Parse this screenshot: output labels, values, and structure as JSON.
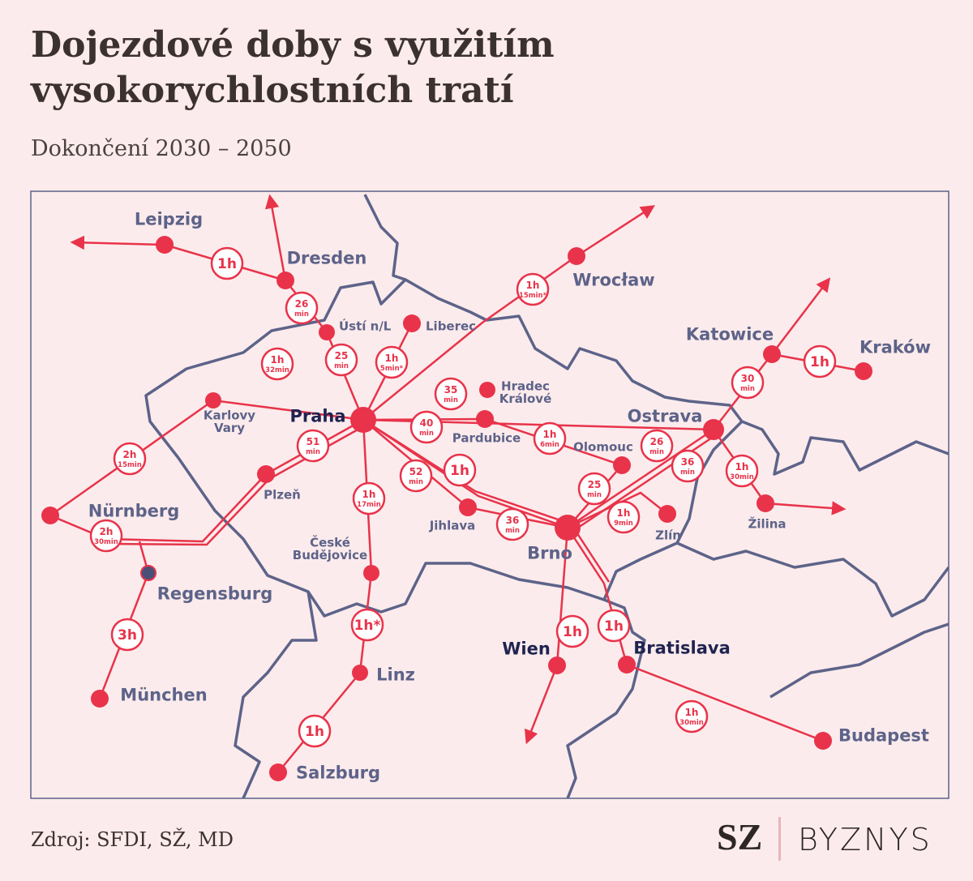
{
  "header": {
    "title": [
      "Dojezdové doby s využitím",
      "vysokorychlostních tratí"
    ],
    "subtitle": "Dokončení 2030 – 2050"
  },
  "cities": [
    {
      "lines": [
        "Leipzig"
      ]
    },
    {
      "lines": [
        "Dresden"
      ]
    },
    {
      "lines": [
        "Ústí n/L"
      ]
    },
    {
      "lines": [
        "Liberec"
      ]
    },
    {
      "lines": [
        "Praha"
      ]
    },
    {
      "lines": [
        "Karlovy",
        "Vary"
      ]
    },
    {
      "lines": [
        "Plzeň"
      ]
    },
    {
      "lines": [
        "Nürnberg"
      ]
    },
    {
      "lines": [
        "Regensburg"
      ]
    },
    {
      "lines": [
        "München"
      ]
    },
    {
      "lines": [
        "České",
        "Budějovice"
      ]
    },
    {
      "lines": [
        "Linz"
      ]
    },
    {
      "lines": [
        "Salzburg"
      ]
    },
    {
      "lines": [
        "Jihlava"
      ]
    },
    {
      "lines": [
        "Brno"
      ]
    },
    {
      "lines": [
        "Pardubice"
      ]
    },
    {
      "lines": [
        "Hradec",
        "Králové"
      ]
    },
    {
      "lines": [
        "Olomouc"
      ]
    },
    {
      "lines": [
        "Zlín"
      ]
    },
    {
      "lines": [
        "Ostrava"
      ]
    },
    {
      "lines": [
        "Katowice"
      ]
    },
    {
      "lines": [
        "Kraków"
      ]
    },
    {
      "lines": [
        "Žilina"
      ]
    },
    {
      "lines": [
        "Wrocław"
      ]
    },
    {
      "lines": [
        "Wien"
      ]
    },
    {
      "lines": [
        "Bratislava"
      ]
    },
    {
      "lines": [
        "Budapest"
      ]
    }
  ],
  "times": [
    {
      "lines": [
        "1h"
      ]
    },
    {
      "lines": [
        "26",
        "min"
      ]
    },
    {
      "lines": [
        "25",
        "min"
      ]
    },
    {
      "lines": [
        "1h",
        "5min*"
      ]
    },
    {
      "lines": [
        "1h",
        "32min"
      ]
    },
    {
      "lines": [
        "2h",
        "15min"
      ]
    },
    {
      "lines": [
        "51",
        "min"
      ]
    },
    {
      "lines": [
        "2h",
        "30min"
      ]
    },
    {
      "lines": [
        "3h"
      ]
    },
    {
      "lines": [
        "1h",
        "17min"
      ]
    },
    {
      "lines": [
        "1h*"
      ]
    },
    {
      "lines": [
        "1h"
      ]
    },
    {
      "lines": [
        "40",
        "min"
      ]
    },
    {
      "lines": [
        "35",
        "min"
      ]
    },
    {
      "lines": [
        "1h",
        "15min*"
      ]
    },
    {
      "lines": [
        "52",
        "min"
      ]
    },
    {
      "lines": [
        "1h"
      ]
    },
    {
      "lines": [
        "36",
        "min"
      ]
    },
    {
      "lines": [
        "1h",
        "6min"
      ]
    },
    {
      "lines": [
        "26",
        "min"
      ]
    },
    {
      "lines": [
        "25",
        "min"
      ]
    },
    {
      "lines": [
        "1h",
        "9min"
      ]
    },
    {
      "lines": [
        "36",
        "min"
      ]
    },
    {
      "lines": [
        "1h",
        "30min"
      ]
    },
    {
      "lines": [
        "30",
        "min"
      ]
    },
    {
      "lines": [
        "1h"
      ]
    },
    {
      "lines": [
        "1h"
      ]
    },
    {
      "lines": [
        "1h"
      ]
    },
    {
      "lines": [
        "1h",
        "30min"
      ]
    }
  ],
  "footer": {
    "source": "Zdroj: SFDI, SŽ, MD",
    "logo": "SZ",
    "brand": "BYZNYS"
  }
}
